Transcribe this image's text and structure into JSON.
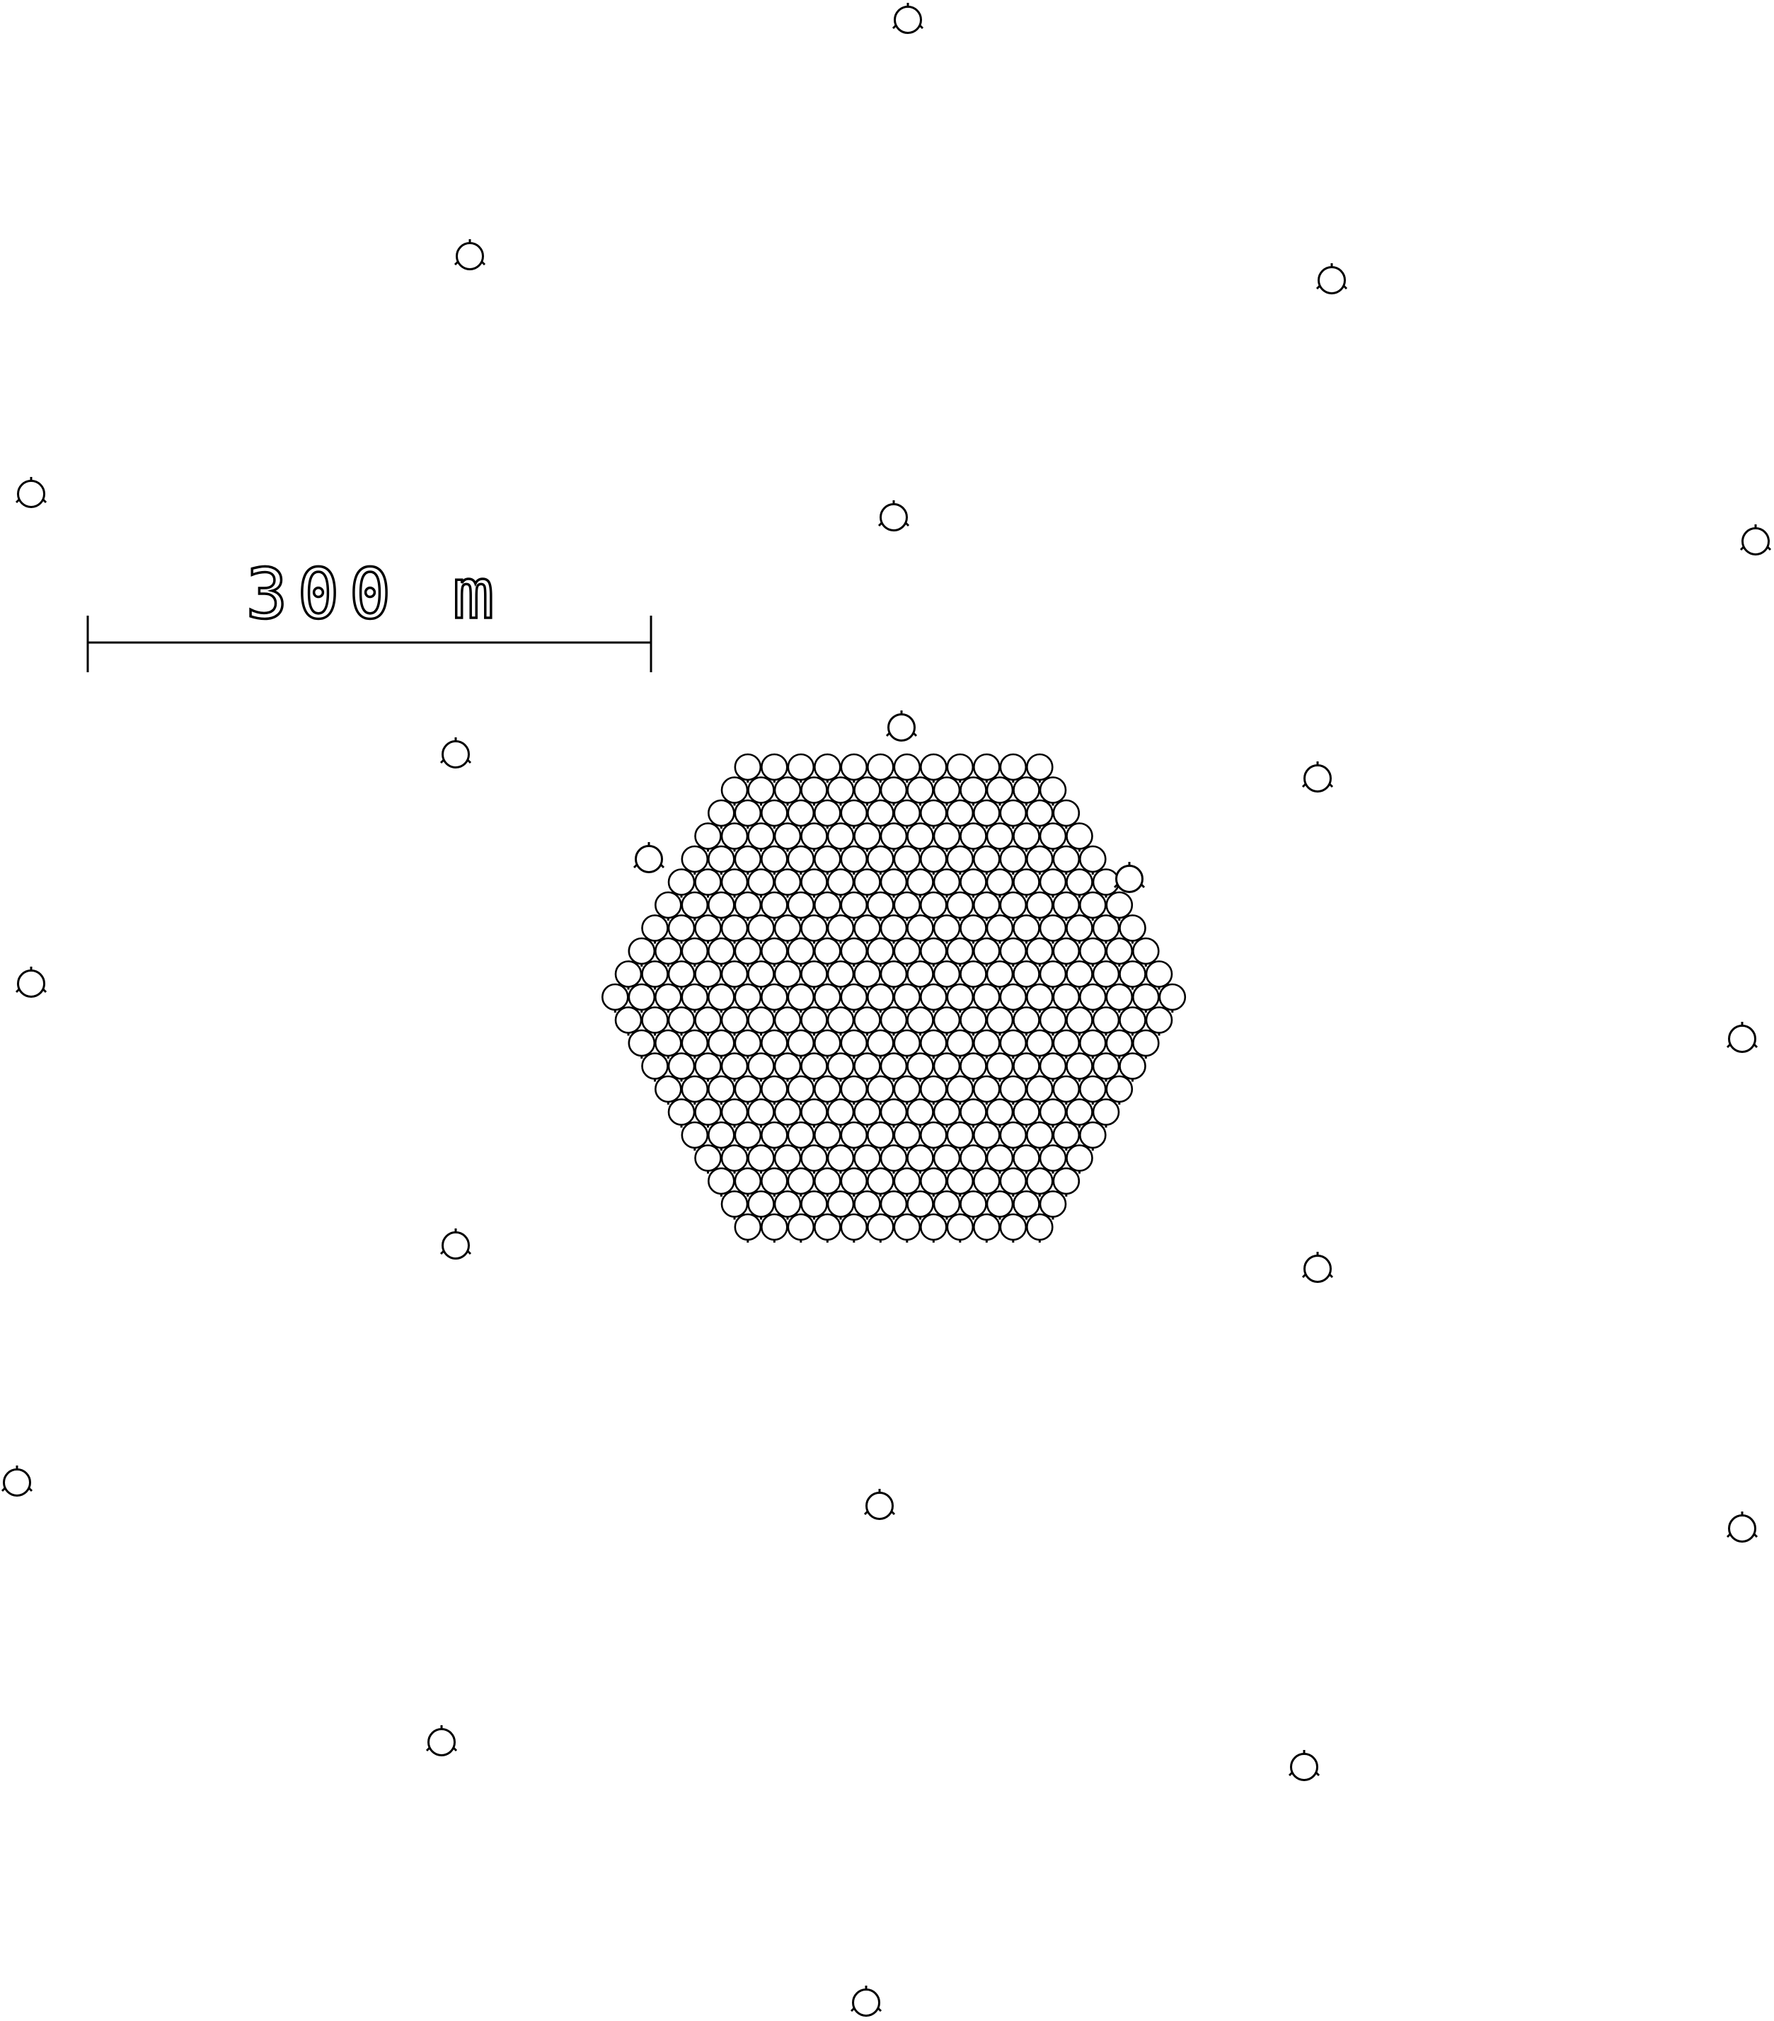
{
  "scale_bar": {
    "label": "300 m"
  },
  "colors": {
    "stroke": "#000000",
    "background": "#ffffff",
    "fill": "#ffffff"
  },
  "array": {
    "shape": "hexagon",
    "rows": [
      12,
      13,
      14,
      15,
      16,
      17,
      18,
      19,
      20,
      21,
      22,
      21,
      20,
      19,
      18,
      17,
      16,
      15,
      14,
      13,
      12
    ]
  }
}
